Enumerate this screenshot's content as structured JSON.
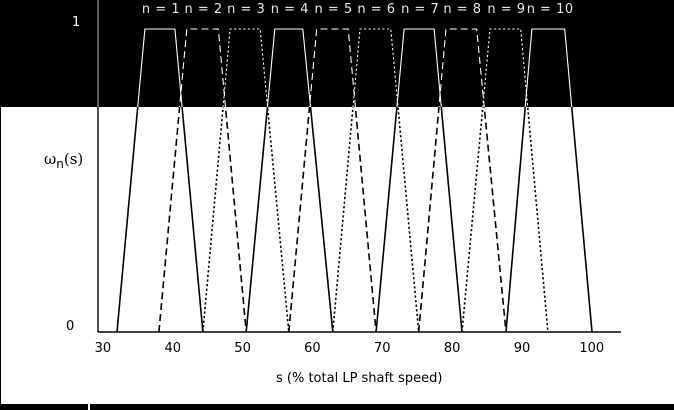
{
  "chart_data": {
    "type": "line",
    "title": "",
    "xlabel": "s (% total LP shaft speed)",
    "ylabel": "ωn(s)",
    "ylabel_main": "ω",
    "ylabel_sub": "n",
    "ylabel_tail": "(s)",
    "xlim": [
      30,
      105
    ],
    "ylim": [
      0,
      1
    ],
    "x_ticks": [
      30,
      40,
      50,
      60,
      70,
      80,
      90,
      100
    ],
    "x_tick_labels": [
      "30",
      "40",
      "50",
      "60",
      "70",
      "80",
      "90",
      "100"
    ],
    "y_ticks": [
      0,
      1
    ],
    "y_tick_labels": [
      "0",
      "1"
    ],
    "grid": false,
    "legend": "inline labels above each membership function",
    "series": [
      {
        "name": "n = 1",
        "style": "solid",
        "x": [
          32.0,
          36.0,
          40.3,
          44.3
        ],
        "y": [
          0,
          1,
          1,
          0
        ]
      },
      {
        "name": "n = 2",
        "style": "dashed",
        "x": [
          38.0,
          42.0,
          46.5,
          50.5
        ],
        "y": [
          0,
          1,
          1,
          0
        ]
      },
      {
        "name": "n = 3",
        "style": "dotted",
        "x": [
          44.3,
          48.2,
          52.5,
          56.6
        ],
        "y": [
          0,
          1,
          1,
          0
        ]
      },
      {
        "name": "n = 4",
        "style": "solid",
        "x": [
          50.5,
          54.6,
          58.6,
          62.9
        ],
        "y": [
          0,
          1,
          1,
          0
        ]
      },
      {
        "name": "n = 5",
        "style": "dashed",
        "x": [
          56.6,
          60.6,
          65.1,
          69.1
        ],
        "y": [
          0,
          1,
          1,
          0
        ]
      },
      {
        "name": "n = 6",
        "style": "dotted",
        "x": [
          62.9,
          66.8,
          71.2,
          75.2
        ],
        "y": [
          0,
          1,
          1,
          0
        ]
      },
      {
        "name": "n = 7",
        "style": "solid",
        "x": [
          69.1,
          73.1,
          77.4,
          81.4
        ],
        "y": [
          0,
          1,
          1,
          0
        ]
      },
      {
        "name": "n = 8",
        "style": "dashed",
        "x": [
          75.2,
          79.1,
          83.5,
          87.7
        ],
        "y": [
          0,
          1,
          1,
          0
        ]
      },
      {
        "name": "n = 9",
        "style": "dotted",
        "x": [
          81.4,
          85.4,
          89.8,
          93.7
        ],
        "y": [
          0,
          1,
          1,
          0
        ]
      },
      {
        "name": "n = 10",
        "style": "solid",
        "x": [
          87.7,
          91.4,
          96.1,
          100.0
        ],
        "y": [
          0,
          1,
          1,
          0
        ]
      }
    ]
  },
  "colors": {
    "background": "#ffffff",
    "band": "#000000",
    "ink": "#000000",
    "ink_on_band": "#ffffff"
  }
}
